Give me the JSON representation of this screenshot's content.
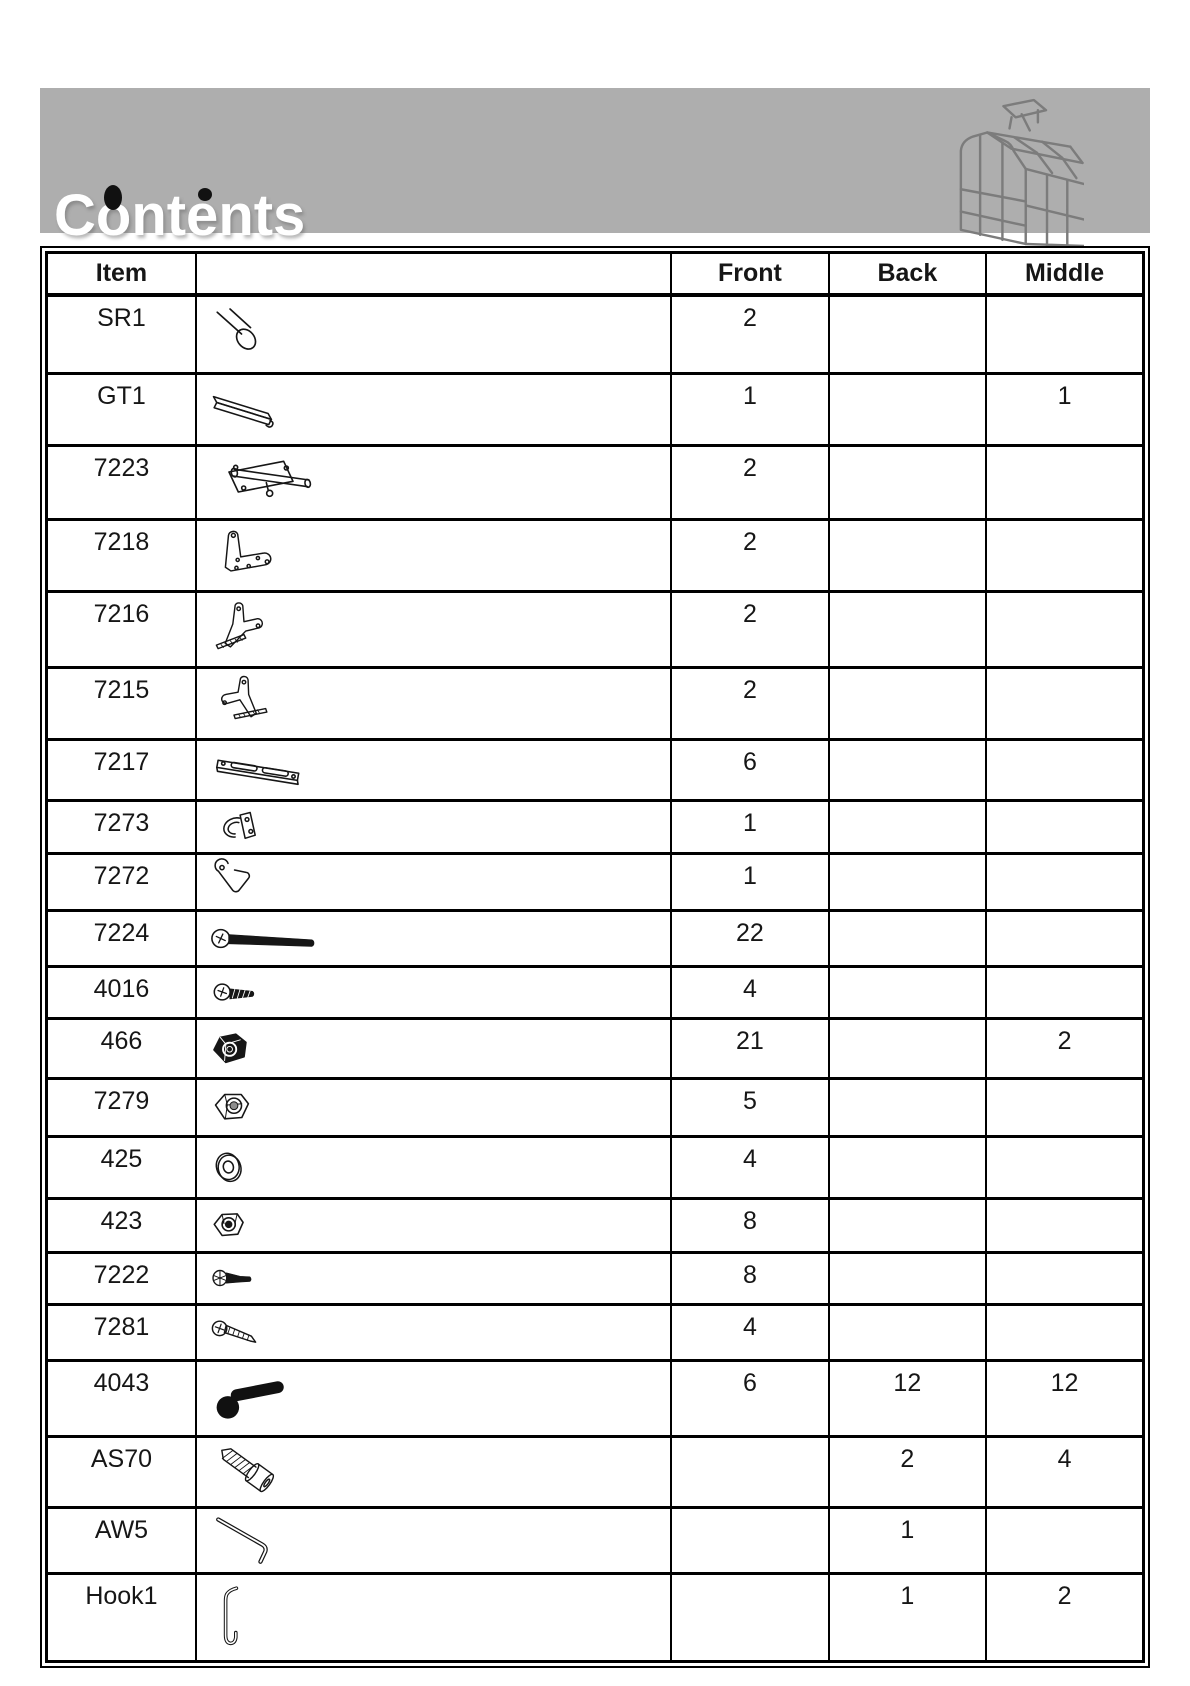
{
  "header": {
    "title": "Contents",
    "logo_icon": "greenhouse-wireframe-icon"
  },
  "colors": {
    "banner_gray": "#aeaeae",
    "line_black": "#161616",
    "greenhouse_gray": "#7c7c7c",
    "title_white": "#ffffff"
  },
  "table": {
    "columns": [
      "Item",
      "",
      "Front",
      "Back",
      "Middle"
    ],
    "rows": [
      {
        "item": "SR1",
        "part": "tube",
        "front": "2",
        "back": "",
        "middle": ""
      },
      {
        "item": "GT1",
        "part": "glazing-strip",
        "front": "1",
        "back": "",
        "middle": "1"
      },
      {
        "item": "7223",
        "part": "barrel-bolt",
        "front": "2",
        "back": "",
        "middle": ""
      },
      {
        "item": "7218",
        "part": "corner-bracket",
        "front": "2",
        "back": "",
        "middle": ""
      },
      {
        "item": "7216",
        "part": "stay-bracket",
        "front": "2",
        "back": "",
        "middle": ""
      },
      {
        "item": "7215",
        "part": "hinge-bracket",
        "front": "2",
        "back": "",
        "middle": ""
      },
      {
        "item": "7217",
        "part": "slotted-strip",
        "front": "6",
        "back": "",
        "middle": ""
      },
      {
        "item": "7273",
        "part": "latch-keeper",
        "front": "1",
        "back": "",
        "middle": ""
      },
      {
        "item": "7272",
        "part": "spring-clip",
        "front": "1",
        "back": "",
        "middle": ""
      },
      {
        "item": "7224",
        "part": "long-bolt",
        "front": "22",
        "back": "",
        "middle": ""
      },
      {
        "item": "4016",
        "part": "pan-screw",
        "front": "4",
        "back": "",
        "middle": ""
      },
      {
        "item": "466",
        "part": "flange-nut",
        "front": "21",
        "back": "",
        "middle": "2"
      },
      {
        "item": "7279",
        "part": "lock-nut",
        "front": "5",
        "back": "",
        "middle": ""
      },
      {
        "item": "425",
        "part": "washer",
        "front": "4",
        "back": "",
        "middle": ""
      },
      {
        "item": "423",
        "part": "hex-nut",
        "front": "8",
        "back": "",
        "middle": ""
      },
      {
        "item": "7222",
        "part": "countersunk-screw",
        "front": "8",
        "back": "",
        "middle": ""
      },
      {
        "item": "7281",
        "part": "self-tapping-screw",
        "front": "4",
        "back": "",
        "middle": ""
      },
      {
        "item": "4043",
        "part": "coach-bolt",
        "front": "6",
        "back": "12",
        "middle": "12"
      },
      {
        "item": "AS70",
        "part": "socket-screw",
        "front": "",
        "back": "2",
        "middle": "4"
      },
      {
        "item": "AW5",
        "part": "allen-key",
        "front": "",
        "back": "1",
        "middle": ""
      },
      {
        "item": "Hook1",
        "part": "wire-hook",
        "front": "",
        "back": "1",
        "middle": "2"
      }
    ]
  }
}
